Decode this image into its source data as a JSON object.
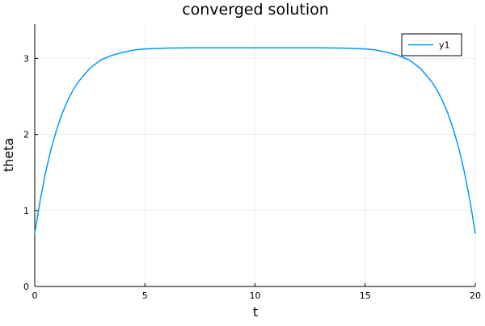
{
  "chart_data": {
    "type": "line",
    "title": "converged solution",
    "xlabel": "t",
    "ylabel": "theta",
    "xlim": [
      0,
      20
    ],
    "ylim": [
      0,
      3.45
    ],
    "xticks": [
      0,
      5,
      10,
      15,
      20
    ],
    "yticks": [
      0,
      1,
      2,
      3
    ],
    "xtick_labels": [
      "0",
      "5",
      "10",
      "15",
      "20"
    ],
    "ytick_labels": [
      "0",
      "1",
      "2",
      "3"
    ],
    "grid": true,
    "legend_position": "top-right",
    "series": [
      {
        "name": "y1",
        "color": "#009af9",
        "x": [
          0,
          0.25,
          0.5,
          0.75,
          1,
          1.25,
          1.5,
          1.75,
          2,
          2.5,
          3,
          3.5,
          4,
          4.5,
          5,
          6,
          7,
          8,
          9,
          10,
          11,
          12,
          13,
          14,
          15,
          15.5,
          16,
          16.5,
          17,
          17.5,
          18,
          18.25,
          18.5,
          18.75,
          19,
          19.25,
          19.5,
          19.75,
          20
        ],
        "y": [
          0.7,
          1.14,
          1.51,
          1.82,
          2.07,
          2.28,
          2.45,
          2.59,
          2.7,
          2.87,
          2.98,
          3.04,
          3.08,
          3.11,
          3.125,
          3.135,
          3.14,
          3.14,
          3.14,
          3.14,
          3.14,
          3.14,
          3.14,
          3.135,
          3.125,
          3.11,
          3.08,
          3.04,
          2.98,
          2.87,
          2.7,
          2.59,
          2.45,
          2.28,
          2.07,
          1.82,
          1.51,
          1.14,
          0.7
        ]
      }
    ]
  }
}
